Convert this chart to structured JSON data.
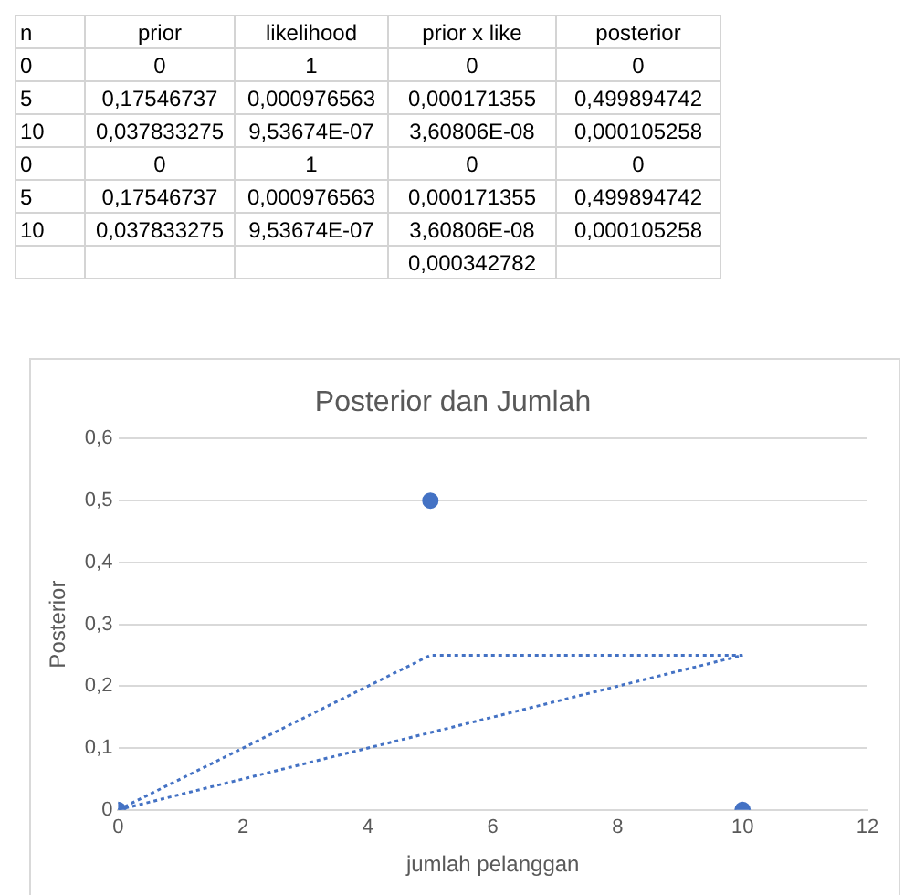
{
  "chart_data": [
    {
      "type": "other",
      "categories": [
        "n",
        "prior",
        "likelihood",
        "prior x like",
        "posterior"
      ],
      "cell_labels": [
        [
          "0",
          "0",
          "1",
          "0",
          "0"
        ],
        [
          "5",
          "0,17546737",
          "0,000976563",
          "0,000171355",
          "0,499894742"
        ],
        [
          "10",
          "0,037833275",
          "9,53674E-07",
          "3,60806E-08",
          "0,000105258"
        ],
        [
          "0",
          "0",
          "1",
          "0",
          "0"
        ],
        [
          "5",
          "0,17546737",
          "0,000976563",
          "0,000171355",
          "0,499894742"
        ],
        [
          "10",
          "0,037833275",
          "9,53674E-07",
          "3,60806E-08",
          "0,000105258"
        ],
        [
          null,
          null,
          null,
          "0,000342782",
          null
        ]
      ]
    },
    {
      "type": "scatter",
      "title": "Posterior dan Jumlah",
      "xlabel": "jumlah pelanggan",
      "ylabel": "Posterior",
      "series": [
        {
          "type": "scatter",
          "color": "#4472c4",
          "x": [
            0,
            5,
            10
          ],
          "values": [
            0,
            0.5,
            0
          ],
          "marker": "circle"
        },
        {
          "type": "line",
          "color": "#4472c4",
          "x": [
            0,
            5,
            10
          ],
          "values": [
            0,
            0.25,
            0.25
          ],
          "line_style": "dotted",
          "marker": "none"
        },
        {
          "type": "line",
          "color": "#4472c4",
          "x": [
            0,
            10
          ],
          "values": [
            0,
            0.25
          ],
          "line_style": "dotted",
          "marker": "none"
        }
      ],
      "xlim": [
        0,
        12
      ],
      "xticks": [
        0,
        2,
        4,
        6,
        8,
        10,
        12
      ],
      "ylim": [
        0,
        0.6
      ],
      "yticks": [
        {
          "value": 0,
          "label": "0"
        },
        {
          "value": 0.1,
          "label": "0,1"
        },
        {
          "value": 0.2,
          "label": "0,2"
        },
        {
          "value": 0.3,
          "label": "0,3"
        },
        {
          "value": 0.4,
          "label": "0,4"
        },
        {
          "value": 0.5,
          "label": "0,5"
        },
        {
          "value": 0.6,
          "label": "0,6"
        }
      ],
      "grid": "y",
      "legend": false
    }
  ]
}
